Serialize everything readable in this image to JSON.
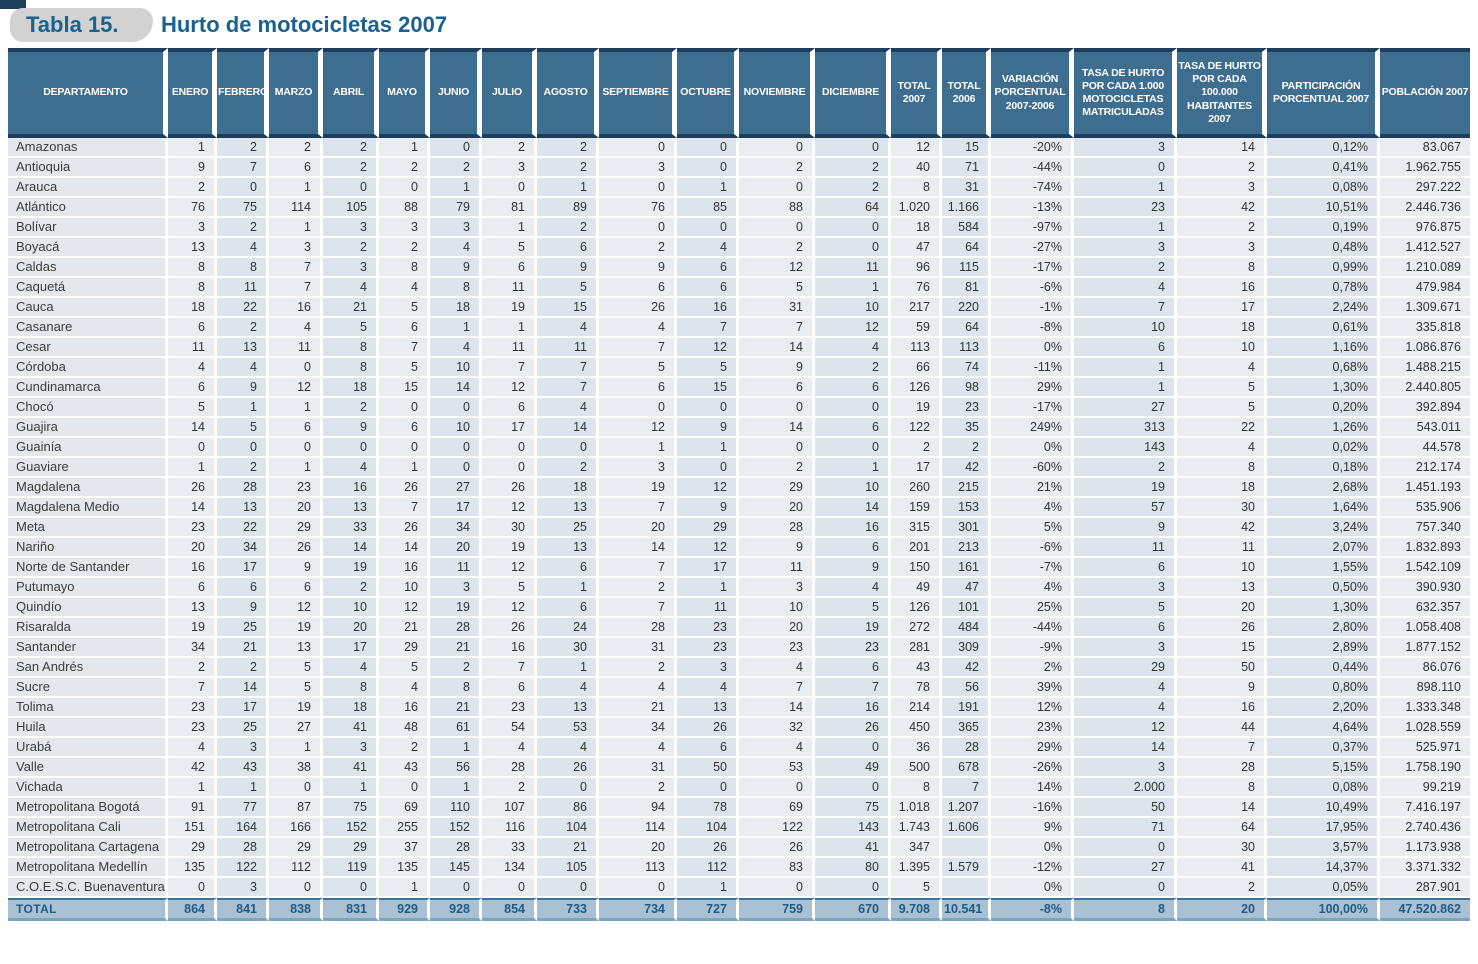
{
  "title": {
    "tab_label": "Tabla 15.",
    "heading": "Hurto de motocicletas 2007"
  },
  "colors": {
    "header_bg": "#3d6e90",
    "header_border": "#1e3e5c",
    "title_text": "#1a6190",
    "title_tab_bg": "#d2d2d2",
    "cell_even": "#dde4eb",
    "cell_odd": "#e9edf2",
    "dept_cell": "#e4e8ec",
    "total_row_bg": "#aac1d3",
    "total_row_text": "#1d5c87"
  },
  "chart_data": {
    "type": "table",
    "title": "Hurto de motocicletas 2007",
    "columns": [
      "DEPARTAMENTO",
      "ENERO",
      "FEBRERO",
      "MARZO",
      "ABRIL",
      "MAYO",
      "JUNIO",
      "JULIO",
      "AGOSTO",
      "SEPTIEMBRE",
      "OCTUBRE",
      "NOVIEMBRE",
      "DICIEMBRE",
      "TOTAL 2007",
      "TOTAL 2006",
      "VARIACIÓN PORCENTUAL 2007-2006",
      "TASA DE HURTO POR CADA 1.000 MOTOCICLETAS MATRICULADAS",
      "TASA DE HURTO POR CADA 100.000 HABITANTES 2007",
      "PARTICIPACIÓN PORCENTUAL 2007",
      "POBLACIÓN 2007"
    ],
    "rows": [
      [
        "Amazonas",
        "1",
        "2",
        "2",
        "2",
        "1",
        "0",
        "2",
        "2",
        "0",
        "0",
        "0",
        "0",
        "12",
        "15",
        "-20%",
        "3",
        "14",
        "0,12%",
        "83.067"
      ],
      [
        "Antioquia",
        "9",
        "7",
        "6",
        "2",
        "2",
        "2",
        "3",
        "2",
        "3",
        "0",
        "2",
        "2",
        "40",
        "71",
        "-44%",
        "0",
        "2",
        "0,41%",
        "1.962.755"
      ],
      [
        "Arauca",
        "2",
        "0",
        "1",
        "0",
        "0",
        "1",
        "0",
        "1",
        "0",
        "1",
        "0",
        "2",
        "8",
        "31",
        "-74%",
        "1",
        "3",
        "0,08%",
        "297.222"
      ],
      [
        "Atlántico",
        "76",
        "75",
        "114",
        "105",
        "88",
        "79",
        "81",
        "89",
        "76",
        "85",
        "88",
        "64",
        "1.020",
        "1.166",
        "-13%",
        "23",
        "42",
        "10,51%",
        "2.446.736"
      ],
      [
        "Bolívar",
        "3",
        "2",
        "1",
        "3",
        "3",
        "3",
        "1",
        "2",
        "0",
        "0",
        "0",
        "0",
        "18",
        "584",
        "-97%",
        "1",
        "2",
        "0,19%",
        "976.875"
      ],
      [
        "Boyacá",
        "13",
        "4",
        "3",
        "2",
        "2",
        "4",
        "5",
        "6",
        "2",
        "4",
        "2",
        "0",
        "47",
        "64",
        "-27%",
        "3",
        "3",
        "0,48%",
        "1.412.527"
      ],
      [
        "Caldas",
        "8",
        "8",
        "7",
        "3",
        "8",
        "9",
        "6",
        "9",
        "9",
        "6",
        "12",
        "11",
        "96",
        "115",
        "-17%",
        "2",
        "8",
        "0,99%",
        "1.210.089"
      ],
      [
        "Caquetá",
        "8",
        "11",
        "7",
        "4",
        "4",
        "8",
        "11",
        "5",
        "6",
        "6",
        "5",
        "1",
        "76",
        "81",
        "-6%",
        "4",
        "16",
        "0,78%",
        "479.984"
      ],
      [
        "Cauca",
        "18",
        "22",
        "16",
        "21",
        "5",
        "18",
        "19",
        "15",
        "26",
        "16",
        "31",
        "10",
        "217",
        "220",
        "-1%",
        "7",
        "17",
        "2,24%",
        "1.309.671"
      ],
      [
        "Casanare",
        "6",
        "2",
        "4",
        "5",
        "6",
        "1",
        "1",
        "4",
        "4",
        "7",
        "7",
        "12",
        "59",
        "64",
        "-8%",
        "10",
        "18",
        "0,61%",
        "335.818"
      ],
      [
        "Cesar",
        "11",
        "13",
        "11",
        "8",
        "7",
        "4",
        "11",
        "11",
        "7",
        "12",
        "14",
        "4",
        "113",
        "113",
        "0%",
        "6",
        "10",
        "1,16%",
        "1.086.876"
      ],
      [
        "Córdoba",
        "4",
        "4",
        "0",
        "8",
        "5",
        "10",
        "7",
        "7",
        "5",
        "5",
        "9",
        "2",
        "66",
        "74",
        "-11%",
        "1",
        "4",
        "0,68%",
        "1.488.215"
      ],
      [
        "Cundinamarca",
        "6",
        "9",
        "12",
        "18",
        "15",
        "14",
        "12",
        "7",
        "6",
        "15",
        "6",
        "6",
        "126",
        "98",
        "29%",
        "1",
        "5",
        "1,30%",
        "2.440.805"
      ],
      [
        "Chocó",
        "5",
        "1",
        "1",
        "2",
        "0",
        "0",
        "6",
        "4",
        "0",
        "0",
        "0",
        "0",
        "19",
        "23",
        "-17%",
        "27",
        "5",
        "0,20%",
        "392.894"
      ],
      [
        "Guajira",
        "14",
        "5",
        "6",
        "9",
        "6",
        "10",
        "17",
        "14",
        "12",
        "9",
        "14",
        "6",
        "122",
        "35",
        "249%",
        "313",
        "22",
        "1,26%",
        "543.011"
      ],
      [
        "Guainía",
        "0",
        "0",
        "0",
        "0",
        "0",
        "0",
        "0",
        "0",
        "1",
        "1",
        "0",
        "0",
        "2",
        "2",
        "0%",
        "143",
        "4",
        "0,02%",
        "44.578"
      ],
      [
        "Guaviare",
        "1",
        "2",
        "1",
        "4",
        "1",
        "0",
        "0",
        "2",
        "3",
        "0",
        "2",
        "1",
        "17",
        "42",
        "-60%",
        "2",
        "8",
        "0,18%",
        "212.174"
      ],
      [
        "Magdalena",
        "26",
        "28",
        "23",
        "16",
        "26",
        "27",
        "26",
        "18",
        "19",
        "12",
        "29",
        "10",
        "260",
        "215",
        "21%",
        "19",
        "18",
        "2,68%",
        "1.451.193"
      ],
      [
        "Magdalena Medio",
        "14",
        "13",
        "20",
        "13",
        "7",
        "17",
        "12",
        "13",
        "7",
        "9",
        "20",
        "14",
        "159",
        "153",
        "4%",
        "57",
        "30",
        "1,64%",
        "535.906"
      ],
      [
        "Meta",
        "23",
        "22",
        "29",
        "33",
        "26",
        "34",
        "30",
        "25",
        "20",
        "29",
        "28",
        "16",
        "315",
        "301",
        "5%",
        "9",
        "42",
        "3,24%",
        "757.340"
      ],
      [
        "Nariño",
        "20",
        "34",
        "26",
        "14",
        "14",
        "20",
        "19",
        "13",
        "14",
        "12",
        "9",
        "6",
        "201",
        "213",
        "-6%",
        "11",
        "11",
        "2,07%",
        "1.832.893"
      ],
      [
        "Norte de Santander",
        "16",
        "17",
        "9",
        "19",
        "16",
        "11",
        "12",
        "6",
        "7",
        "17",
        "11",
        "9",
        "150",
        "161",
        "-7%",
        "6",
        "10",
        "1,55%",
        "1.542.109"
      ],
      [
        "Putumayo",
        "6",
        "6",
        "6",
        "2",
        "10",
        "3",
        "5",
        "1",
        "2",
        "1",
        "3",
        "4",
        "49",
        "47",
        "4%",
        "3",
        "13",
        "0,50%",
        "390.930"
      ],
      [
        "Quindío",
        "13",
        "9",
        "12",
        "10",
        "12",
        "19",
        "12",
        "6",
        "7",
        "11",
        "10",
        "5",
        "126",
        "101",
        "25%",
        "5",
        "20",
        "1,30%",
        "632.357"
      ],
      [
        "Risaralda",
        "19",
        "25",
        "19",
        "20",
        "21",
        "28",
        "26",
        "24",
        "28",
        "23",
        "20",
        "19",
        "272",
        "484",
        "-44%",
        "6",
        "26",
        "2,80%",
        "1.058.408"
      ],
      [
        "Santander",
        "34",
        "21",
        "13",
        "17",
        "29",
        "21",
        "16",
        "30",
        "31",
        "23",
        "23",
        "23",
        "281",
        "309",
        "-9%",
        "3",
        "15",
        "2,89%",
        "1.877.152"
      ],
      [
        "San Andrés",
        "2",
        "2",
        "5",
        "4",
        "5",
        "2",
        "7",
        "1",
        "2",
        "3",
        "4",
        "6",
        "43",
        "42",
        "2%",
        "29",
        "50",
        "0,44%",
        "86.076"
      ],
      [
        "Sucre",
        "7",
        "14",
        "5",
        "8",
        "4",
        "8",
        "6",
        "4",
        "4",
        "4",
        "7",
        "7",
        "78",
        "56",
        "39%",
        "4",
        "9",
        "0,80%",
        "898.110"
      ],
      [
        "Tolima",
        "23",
        "17",
        "19",
        "18",
        "16",
        "21",
        "23",
        "13",
        "21",
        "13",
        "14",
        "16",
        "214",
        "191",
        "12%",
        "4",
        "16",
        "2,20%",
        "1.333.348"
      ],
      [
        "Huila",
        "23",
        "25",
        "27",
        "41",
        "48",
        "61",
        "54",
        "53",
        "34",
        "26",
        "32",
        "26",
        "450",
        "365",
        "23%",
        "12",
        "44",
        "4,64%",
        "1.028.559"
      ],
      [
        "Urabá",
        "4",
        "3",
        "1",
        "3",
        "2",
        "1",
        "4",
        "4",
        "4",
        "6",
        "4",
        "0",
        "36",
        "28",
        "29%",
        "14",
        "7",
        "0,37%",
        "525.971"
      ],
      [
        "Valle",
        "42",
        "43",
        "38",
        "41",
        "43",
        "56",
        "28",
        "26",
        "31",
        "50",
        "53",
        "49",
        "500",
        "678",
        "-26%",
        "3",
        "28",
        "5,15%",
        "1.758.190"
      ],
      [
        "Vichada",
        "1",
        "1",
        "0",
        "1",
        "0",
        "1",
        "2",
        "0",
        "2",
        "0",
        "0",
        "0",
        "8",
        "7",
        "14%",
        "2.000",
        "8",
        "0,08%",
        "99.219"
      ],
      [
        "Metropolitana Bogotá",
        "91",
        "77",
        "87",
        "75",
        "69",
        "110",
        "107",
        "86",
        "94",
        "78",
        "69",
        "75",
        "1.018",
        "1.207",
        "-16%",
        "50",
        "14",
        "10,49%",
        "7.416.197"
      ],
      [
        "Metropolitana Cali",
        "151",
        "164",
        "166",
        "152",
        "255",
        "152",
        "116",
        "104",
        "114",
        "104",
        "122",
        "143",
        "1.743",
        "1.606",
        "9%",
        "71",
        "64",
        "17,95%",
        "2.740.436"
      ],
      [
        "Metropolitana Cartagena",
        "29",
        "28",
        "29",
        "29",
        "37",
        "28",
        "33",
        "21",
        "20",
        "26",
        "26",
        "41",
        "347",
        "",
        "0%",
        "0",
        "30",
        "3,57%",
        "1.173.938"
      ],
      [
        "Metropolitana Medellín",
        "135",
        "122",
        "112",
        "119",
        "135",
        "145",
        "134",
        "105",
        "113",
        "112",
        "83",
        "80",
        "1.395",
        "1.579",
        "-12%",
        "27",
        "41",
        "14,37%",
        "3.371.332"
      ],
      [
        "C.O.E.S.C. Buenaventura",
        "0",
        "3",
        "0",
        "0",
        "1",
        "0",
        "0",
        "0",
        "0",
        "1",
        "0",
        "0",
        "5",
        "",
        "0%",
        "0",
        "2",
        "0,05%",
        "287.901"
      ]
    ],
    "total_row": [
      "TOTAL",
      "864",
      "841",
      "838",
      "831",
      "929",
      "928",
      "854",
      "733",
      "734",
      "727",
      "759",
      "670",
      "9.708",
      "10.541",
      "-8%",
      "8",
      "20",
      "100,00%",
      "47.520.862"
    ]
  }
}
